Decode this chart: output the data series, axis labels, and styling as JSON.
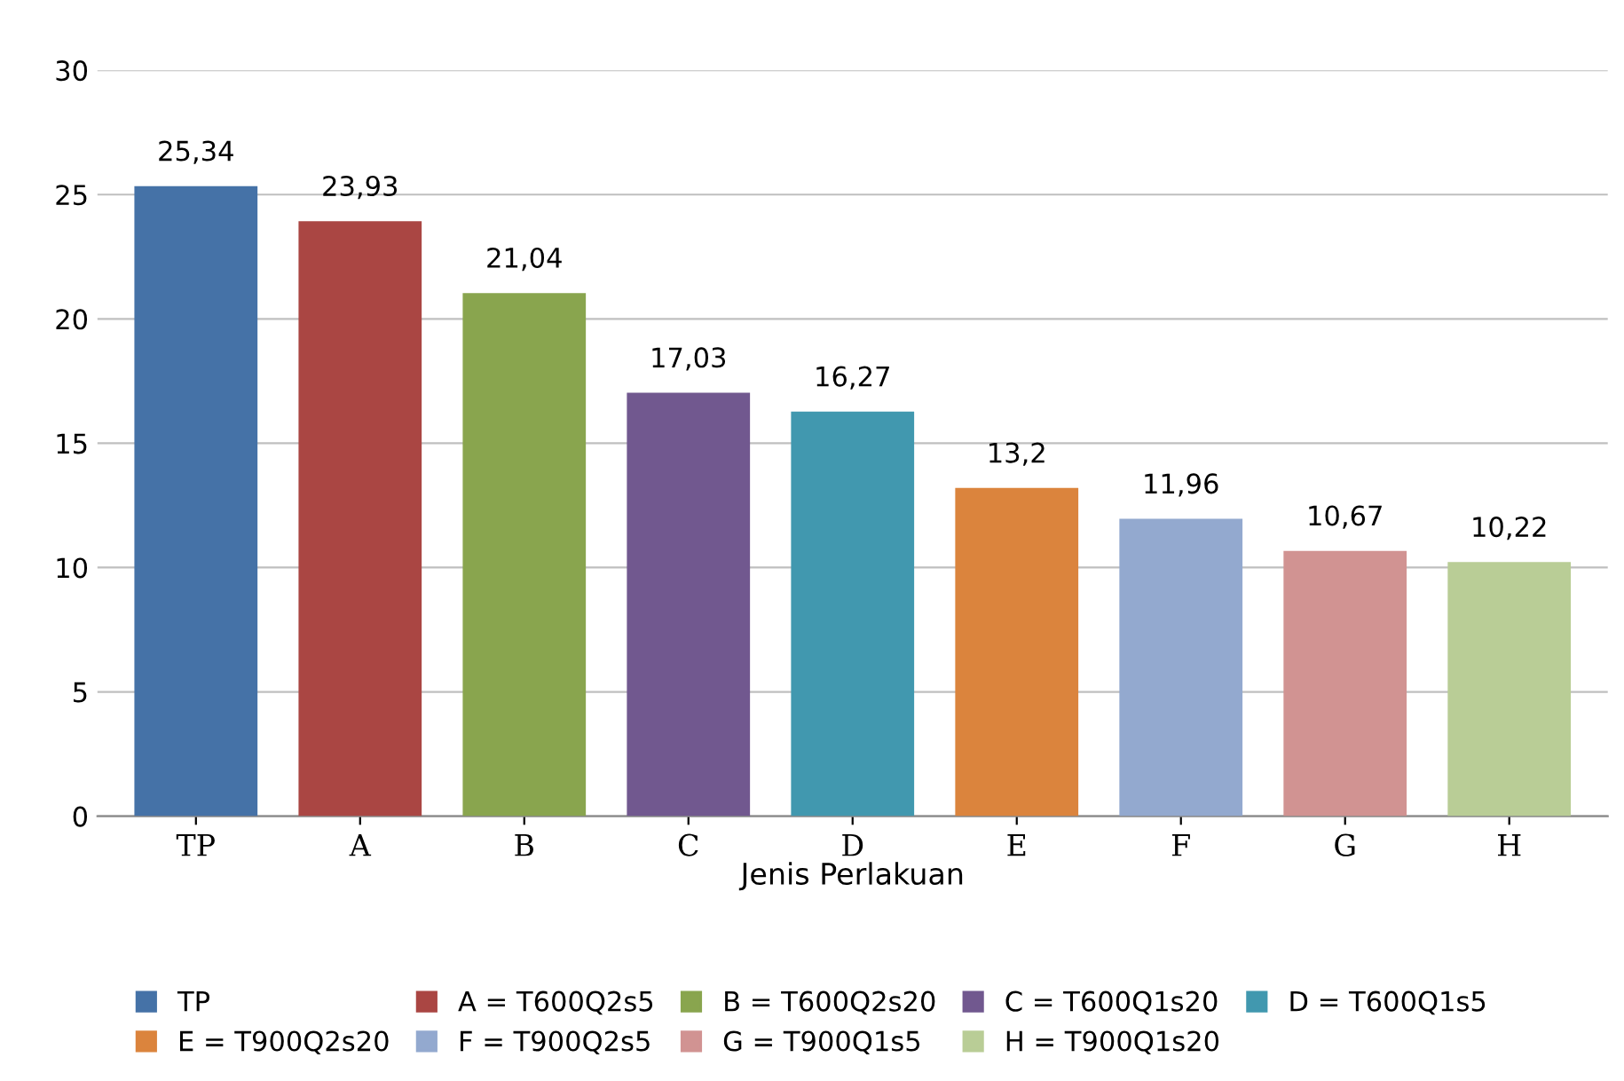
{
  "chart_data": {
    "type": "bar",
    "xlabel": "Jenis Perlakuan",
    "categories": [
      "TP",
      "A",
      "B",
      "C",
      "D",
      "E",
      "F",
      "G",
      "H"
    ],
    "series": [
      {
        "name": "TP",
        "color": "#4572a7",
        "values": [
          25.34,
          null,
          null,
          null,
          null,
          null,
          null,
          null,
          null
        ],
        "value_labels": [
          "25,34",
          null,
          null,
          null,
          null,
          null,
          null,
          null,
          null
        ]
      },
      {
        "name": "A = T600Q2s5",
        "color": "#aa4643",
        "values": [
          null,
          23.93,
          null,
          null,
          null,
          null,
          null,
          null,
          null
        ],
        "value_labels": [
          null,
          "23,93",
          null,
          null,
          null,
          null,
          null,
          null,
          null
        ]
      },
      {
        "name": "B = T600Q2s20",
        "color": "#89a54e",
        "values": [
          null,
          null,
          21.04,
          null,
          null,
          null,
          null,
          null,
          null
        ],
        "value_labels": [
          null,
          null,
          "21,04",
          null,
          null,
          null,
          null,
          null,
          null
        ]
      },
      {
        "name": "C = T600Q1s20",
        "color": "#71588f",
        "values": [
          null,
          null,
          null,
          17.03,
          null,
          null,
          null,
          null,
          null
        ],
        "value_labels": [
          null,
          null,
          null,
          "17,03",
          null,
          null,
          null,
          null,
          null
        ]
      },
      {
        "name": "D = T600Q1s5",
        "color": "#4198af",
        "values": [
          null,
          null,
          null,
          null,
          16.27,
          null,
          null,
          null,
          null
        ],
        "value_labels": [
          null,
          null,
          null,
          null,
          "16,27",
          null,
          null,
          null,
          null
        ]
      },
      {
        "name": "E = T900Q2s20",
        "color": "#db843d",
        "values": [
          null,
          null,
          null,
          null,
          null,
          13.2,
          null,
          null,
          null
        ],
        "value_labels": [
          null,
          null,
          null,
          null,
          null,
          "13,2",
          null,
          null,
          null
        ]
      },
      {
        "name": "F = T900Q2s5",
        "color": "#93a9cf",
        "values": [
          null,
          null,
          null,
          null,
          null,
          null,
          11.96,
          null,
          null
        ],
        "value_labels": [
          null,
          null,
          null,
          null,
          null,
          null,
          "11,96",
          null,
          null
        ]
      },
      {
        "name": "G = T900Q1s5",
        "color": "#d19392",
        "values": [
          null,
          null,
          null,
          null,
          null,
          null,
          null,
          10.67,
          null
        ],
        "value_labels": [
          null,
          null,
          null,
          null,
          null,
          null,
          null,
          "10,67",
          null
        ]
      },
      {
        "name": "H = T900Q1s20",
        "color": "#b9cd96",
        "values": [
          null,
          null,
          null,
          null,
          null,
          null,
          null,
          null,
          10.22
        ],
        "value_labels": [
          null,
          null,
          null,
          null,
          null,
          null,
          null,
          null,
          "10,22"
        ]
      }
    ],
    "ylim": [
      0,
      30
    ],
    "yticks": [
      0,
      5,
      10,
      15,
      20,
      25,
      30
    ],
    "grid": "y",
    "legend": "bottom"
  }
}
